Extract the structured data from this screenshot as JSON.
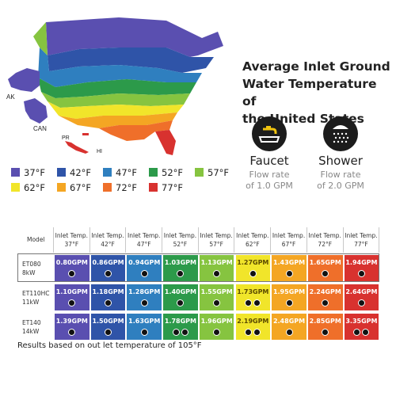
{
  "map": {
    "labels": {
      "ak": "AK",
      "can": "CAN",
      "pr": "PR",
      "hi": "HI"
    }
  },
  "title": {
    "line1": "Average Inlet Ground",
    "line2": "Water Temperature of",
    "line3": "the United States"
  },
  "fixtures": [
    {
      "name": "Faucet",
      "line1": "Flow rate",
      "line2": "of 1.0 GPM",
      "icon": "faucet-icon"
    },
    {
      "name": "Shower",
      "line1": "Flow rate",
      "line2": "of 2.0 GPM",
      "icon": "shower-icon"
    }
  ],
  "legend": [
    {
      "label": "37°F",
      "color": "#5a4fb0"
    },
    {
      "label": "42°F",
      "color": "#2f54a8"
    },
    {
      "label": "47°F",
      "color": "#2f7fbf"
    },
    {
      "label": "52°F",
      "color": "#2c9a4a"
    },
    {
      "label": "57°F",
      "color": "#86c440"
    },
    {
      "label": "62°F",
      "color": "#f1e52a"
    },
    {
      "label": "67°F",
      "color": "#f4a623"
    },
    {
      "label": "72°F",
      "color": "#ef6f2a"
    },
    {
      "label": "77°F",
      "color": "#d8322f"
    }
  ],
  "table": {
    "model_header": "Model",
    "columns": [
      {
        "l1": "Inlet Temp.",
        "l2": "37°F",
        "color": "#5a4fb0"
      },
      {
        "l1": "Inlet Temp.",
        "l2": "42°F",
        "color": "#2f54a8"
      },
      {
        "l1": "Inlet Temp.",
        "l2": "47°F",
        "color": "#2f7fbf"
      },
      {
        "l1": "Inlet Temp.",
        "l2": "52°F",
        "color": "#2c9a4a"
      },
      {
        "l1": "Inlet Temp.",
        "l2": "57°F",
        "color": "#86c440"
      },
      {
        "l1": "Inlet Temp.",
        "l2": "62°F",
        "color": "#f1e52a"
      },
      {
        "l1": "Inlet Temp.",
        "l2": "67°F",
        "color": "#f4a623"
      },
      {
        "l1": "Inlet Temp.",
        "l2": "72°F",
        "color": "#ef6f2a"
      },
      {
        "l1": "Inlet Temp.",
        "l2": "77°F",
        "color": "#d8322f"
      }
    ],
    "rows": [
      {
        "model": "ET080",
        "kw": "8kW",
        "values": [
          "0.80GPM",
          "0.86GPM",
          "0.94GPM",
          "1.03GPM",
          "1.13GPM",
          "1.27GPM",
          "1.43GPM",
          "1.65GPM",
          "1.94GPM"
        ],
        "icons": [
          1,
          1,
          1,
          1,
          1,
          1,
          1,
          1,
          1
        ]
      },
      {
        "model": "ET110HC",
        "kw": "11kW",
        "values": [
          "1.10GPM",
          "1.18GPM",
          "1.28GPM",
          "1.40GPM",
          "1.55GPM",
          "1.73GPM",
          "1.95GPM",
          "2.24GPM",
          "2.64GPM"
        ],
        "icons": [
          1,
          1,
          1,
          1,
          1,
          2,
          1,
          1,
          1
        ]
      },
      {
        "model": "ET140",
        "kw": "14kW",
        "values": [
          "1.39GPM",
          "1.50GPM",
          "1.63GPM",
          "1.78GPM",
          "1.96GPM",
          "2.19GPM",
          "2.48GPM",
          "2.85GPM",
          "3.35GPM"
        ],
        "icons": [
          1,
          1,
          1,
          2,
          1,
          2,
          1,
          1,
          2
        ]
      }
    ]
  },
  "note": "Results based on out let temperature of 105°F"
}
